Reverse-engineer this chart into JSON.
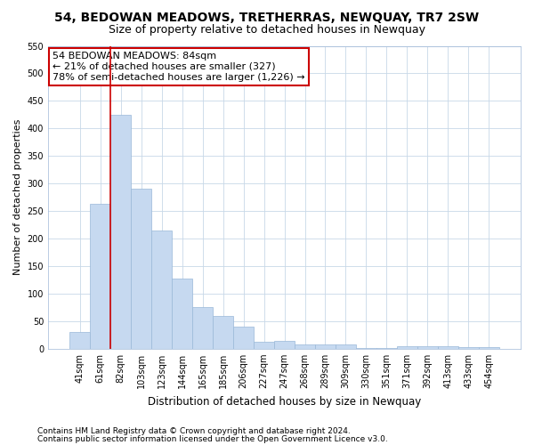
{
  "title": "54, BEDOWAN MEADOWS, TRETHERRAS, NEWQUAY, TR7 2SW",
  "subtitle": "Size of property relative to detached houses in Newquay",
  "xlabel": "Distribution of detached houses by size in Newquay",
  "ylabel": "Number of detached properties",
  "categories": [
    "41sqm",
    "61sqm",
    "82sqm",
    "103sqm",
    "123sqm",
    "144sqm",
    "165sqm",
    "185sqm",
    "206sqm",
    "227sqm",
    "247sqm",
    "268sqm",
    "289sqm",
    "309sqm",
    "330sqm",
    "351sqm",
    "371sqm",
    "392sqm",
    "413sqm",
    "433sqm",
    "454sqm"
  ],
  "values": [
    30,
    263,
    425,
    290,
    215,
    127,
    76,
    60,
    40,
    12,
    15,
    8,
    8,
    8,
    2,
    2,
    5,
    4,
    4,
    3,
    3
  ],
  "bar_color": "#c6d9f0",
  "bar_edge_color": "#9ab8d8",
  "vline_index": 2,
  "annotation_line1": "54 BEDOWAN MEADOWS: 84sqm",
  "annotation_line2": "← 21% of detached houses are smaller (327)",
  "annotation_line3": "78% of semi-detached houses are larger (1,226) →",
  "annotation_box_color": "#ffffff",
  "annotation_box_edge": "#cc0000",
  "vline_color": "#cc0000",
  "ylim_max": 550,
  "yticks": [
    0,
    50,
    100,
    150,
    200,
    250,
    300,
    350,
    400,
    450,
    500,
    550
  ],
  "footer_line1": "Contains HM Land Registry data © Crown copyright and database right 2024.",
  "footer_line2": "Contains public sector information licensed under the Open Government Licence v3.0.",
  "bg_color": "#ffffff",
  "grid_color": "#c8d8e8",
  "title_fontsize": 10,
  "subtitle_fontsize": 9,
  "tick_fontsize": 7,
  "ylabel_fontsize": 8,
  "xlabel_fontsize": 8.5,
  "annotation_fontsize": 8,
  "footer_fontsize": 6.5
}
